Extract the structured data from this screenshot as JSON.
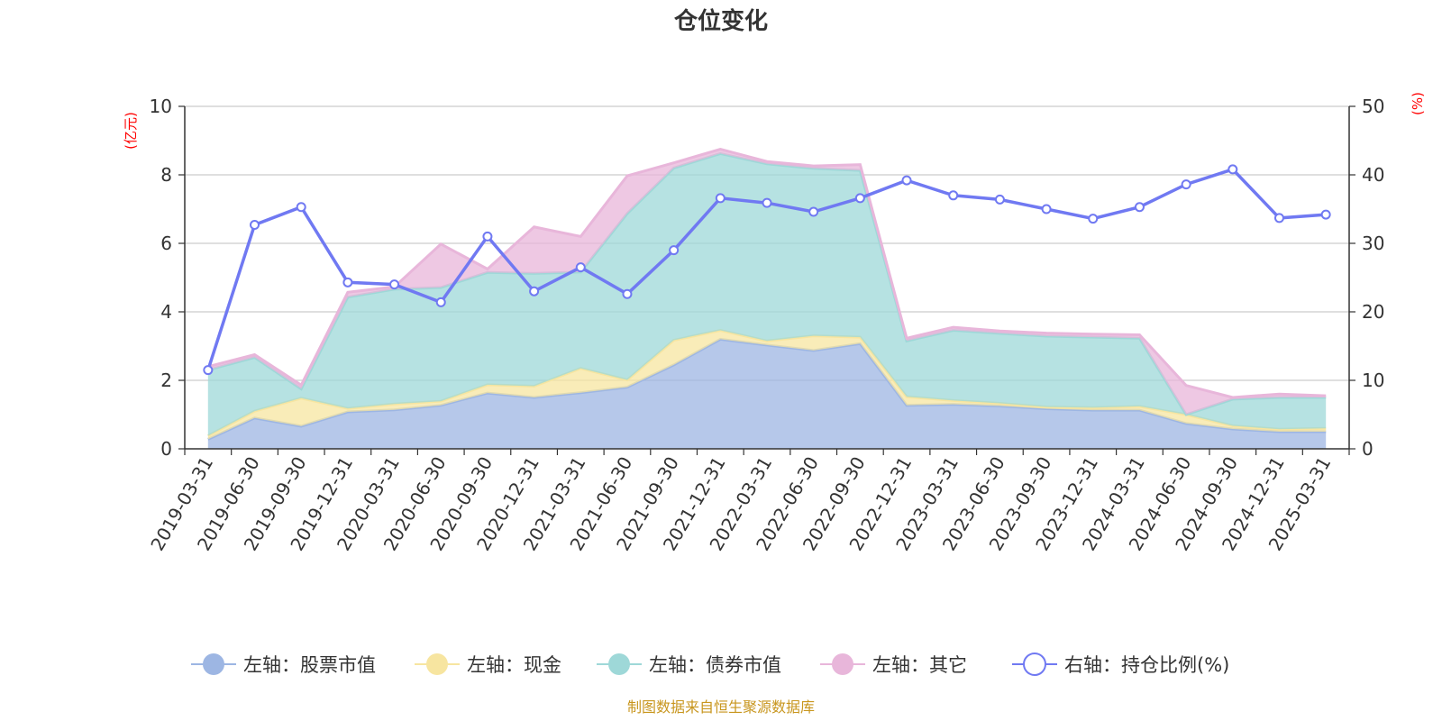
{
  "chart_data": {
    "type": "area",
    "title": "仓位变化",
    "left_axis_unit": "(亿元)",
    "right_axis_unit": "(%)",
    "left_ylim": [
      0,
      10
    ],
    "left_yticks": [
      "0",
      "2",
      "4",
      "6",
      "8",
      "10"
    ],
    "right_ylim": [
      0,
      50
    ],
    "right_yticks": [
      "0",
      "10",
      "20",
      "30",
      "40",
      "50"
    ],
    "grid": true,
    "legend_position": "bottom",
    "categories": [
      "2019-03-31",
      "2019-06-30",
      "2019-09-30",
      "2019-12-31",
      "2020-03-31",
      "2020-06-30",
      "2020-09-30",
      "2020-12-31",
      "2021-03-31",
      "2021-06-30",
      "2021-09-30",
      "2021-12-31",
      "2022-03-31",
      "2022-06-30",
      "2022-09-30",
      "2022-12-31",
      "2023-03-31",
      "2023-06-30",
      "2023-09-30",
      "2023-12-31",
      "2024-03-31",
      "2024-06-30",
      "2024-09-30",
      "2024-12-31",
      "2025-03-31"
    ],
    "series": [
      {
        "name": "左轴：股票市值",
        "axis": "left",
        "kind": "stacked-area",
        "color": "#9db6e3",
        "values": [
          0.28,
          0.9,
          0.66,
          1.08,
          1.14,
          1.27,
          1.63,
          1.5,
          1.64,
          1.8,
          2.45,
          3.2,
          3.03,
          2.87,
          3.07,
          1.27,
          1.3,
          1.25,
          1.17,
          1.13,
          1.13,
          0.74,
          0.58,
          0.5,
          0.5
        ]
      },
      {
        "name": "左轴：现金",
        "axis": "left",
        "kind": "stacked-area",
        "color": "#f7e5a0",
        "values": [
          0.1,
          0.2,
          0.82,
          0.1,
          0.17,
          0.12,
          0.24,
          0.33,
          0.71,
          0.21,
          0.72,
          0.26,
          0.12,
          0.43,
          0.19,
          0.25,
          0.11,
          0.08,
          0.05,
          0.07,
          0.11,
          0.26,
          0.09,
          0.07,
          0.1
        ]
      },
      {
        "name": "左轴：债券市值",
        "axis": "left",
        "kind": "stacked-area",
        "color": "#9ed8d8",
        "values": [
          1.92,
          1.57,
          0.27,
          3.25,
          3.35,
          3.32,
          3.28,
          3.29,
          2.81,
          4.86,
          5.03,
          5.16,
          5.17,
          4.89,
          4.87,
          1.63,
          2.05,
          2.04,
          2.07,
          2.06,
          1.99,
          0.0,
          0.78,
          0.93,
          0.9
        ]
      },
      {
        "name": "左轴：其它",
        "axis": "left",
        "kind": "stacked-area",
        "color": "#e8b6da",
        "values": [
          0.1,
          0.08,
          0.11,
          0.14,
          0.07,
          1.27,
          0.1,
          1.36,
          1.04,
          1.1,
          0.15,
          0.13,
          0.07,
          0.07,
          0.17,
          0.08,
          0.09,
          0.07,
          0.09,
          0.09,
          0.1,
          0.85,
          0.05,
          0.1,
          0.05
        ]
      },
      {
        "name": "右轴：持仓比例(%)",
        "axis": "right",
        "kind": "line",
        "color": "#7079f2",
        "values": [
          11.5,
          32.7,
          35.3,
          24.3,
          24.0,
          21.4,
          31.0,
          23.0,
          26.5,
          22.6,
          29.0,
          36.6,
          35.9,
          34.6,
          36.6,
          39.2,
          37.0,
          36.4,
          35.0,
          33.6,
          35.3,
          38.6,
          40.8,
          33.7,
          34.2
        ]
      }
    ],
    "source_note": "制图数据来自恒生聚源数据库"
  }
}
